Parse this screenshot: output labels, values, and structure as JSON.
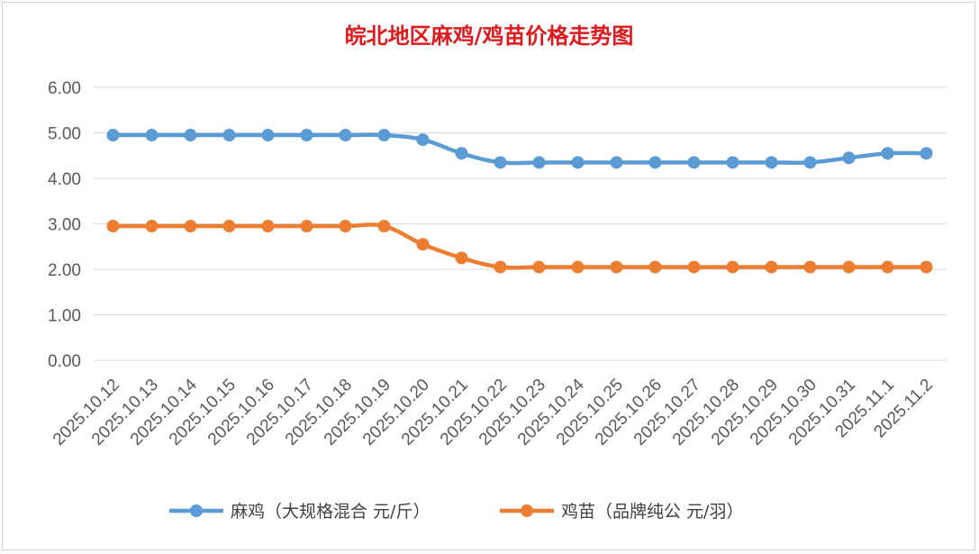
{
  "chart_data": {
    "type": "line",
    "title": "皖北地区麻鸡/鸡苗价格走势图",
    "categories": [
      "2025.10.12",
      "2025.10.13",
      "2025.10.14",
      "2025.10.15",
      "2025.10.16",
      "2025.10.17",
      "2025.10.18",
      "2025.10.19",
      "2025.10.20",
      "2025.10.21",
      "2025.10.22",
      "2025.10.23",
      "2025.10.24",
      "2025.10.25",
      "2025.10.26",
      "2025.10.27",
      "2025.10.28",
      "2025.10.29",
      "2025.10.30",
      "2025.10.31",
      "2025.11.1",
      "2025.11.2"
    ],
    "series": [
      {
        "name": "麻鸡（大规格混合 元/斤）",
        "color": "#5b9bd5",
        "values": [
          4.95,
          4.95,
          4.95,
          4.95,
          4.95,
          4.95,
          4.95,
          4.95,
          4.85,
          4.55,
          4.35,
          4.35,
          4.35,
          4.35,
          4.35,
          4.35,
          4.35,
          4.35,
          4.35,
          4.45,
          4.55,
          4.55
        ]
      },
      {
        "name": "鸡苗（品牌纯公 元/羽）",
        "color": "#ed7d31",
        "values": [
          2.95,
          2.95,
          2.95,
          2.95,
          2.95,
          2.95,
          2.95,
          2.95,
          2.55,
          2.25,
          2.05,
          2.05,
          2.05,
          2.05,
          2.05,
          2.05,
          2.05,
          2.05,
          2.05,
          2.05,
          2.05,
          2.05
        ]
      }
    ],
    "y_ticks": [
      "0.00",
      "1.00",
      "2.00",
      "3.00",
      "4.00",
      "5.00",
      "6.00"
    ],
    "ylim": [
      0,
      6
    ],
    "grid": true,
    "legend_position": "bottom",
    "xlabel": "",
    "ylabel": ""
  }
}
